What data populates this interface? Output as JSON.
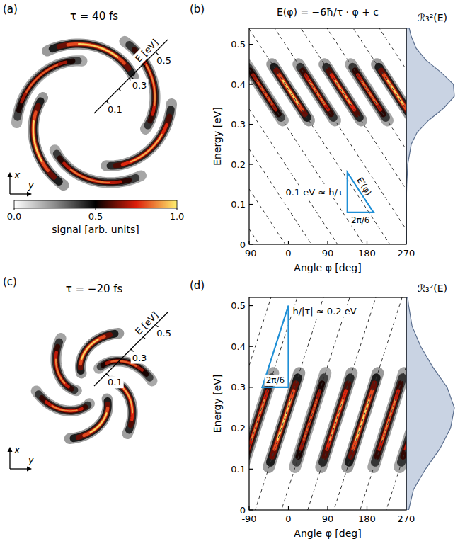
{
  "chart_data": [
    {
      "panel": "(a)",
      "type": "polar_heatmap",
      "title": "τ = 40 fs",
      "r_label": "E [eV]",
      "rlim": [
        0,
        0.6
      ],
      "rticks": [
        0.1,
        0.3,
        0.5
      ],
      "rminor": [
        0.2,
        0.4
      ],
      "direction_labels": [
        "x",
        "y"
      ],
      "streaks": [
        {
          "phi": [
            -97,
            -13
          ],
          "energy": [
            0.45,
            0.31
          ],
          "peak": 0.85
        },
        {
          "phi": [
            -37,
            47
          ],
          "energy": [
            0.45,
            0.31
          ],
          "peak": 1.0
        },
        {
          "phi": [
            23,
            107
          ],
          "energy": [
            0.45,
            0.31
          ],
          "peak": 0.9
        },
        {
          "phi": [
            83,
            167
          ],
          "energy": [
            0.45,
            0.31
          ],
          "peak": 0.95
        },
        {
          "phi": [
            143,
            227
          ],
          "energy": [
            0.45,
            0.31
          ],
          "peak": 0.88
        },
        {
          "phi": [
            203,
            287
          ],
          "energy": [
            0.45,
            0.31
          ],
          "peak": 1.0
        }
      ],
      "colorbar": {
        "label": "signal [arb. units]",
        "range": [
          0,
          1
        ],
        "ticks": [
          {
            "value": 0,
            "label": "0.0"
          },
          {
            "value": 0.5,
            "label": "0.5"
          },
          {
            "value": 1,
            "label": "1.0"
          }
        ],
        "colors": [
          "#ffffff",
          "#8c8c8c",
          "#000000",
          "#dc1e0a",
          "#fff06e"
        ]
      }
    },
    {
      "panel": "(b)",
      "type": "heatmap",
      "xlabel": "Angle φ [deg]",
      "ylabel": "Energy [eV]",
      "xlim": [
        -90,
        270
      ],
      "xticks": [
        -90,
        0,
        90,
        180,
        270
      ],
      "ylim": [
        0,
        0.54
      ],
      "yticks": [
        0,
        0.1,
        0.2,
        0.3,
        0.4,
        0.5
      ],
      "streaks": [
        {
          "phi": [
            -97,
            -13
          ],
          "energy": [
            0.45,
            0.31
          ],
          "peak": 0.85
        },
        {
          "phi": [
            -37,
            47
          ],
          "energy": [
            0.45,
            0.31
          ],
          "peak": 1.0
        },
        {
          "phi": [
            23,
            107
          ],
          "energy": [
            0.45,
            0.31
          ],
          "peak": 0.9
        },
        {
          "phi": [
            83,
            167
          ],
          "energy": [
            0.45,
            0.31
          ],
          "peak": 0.95
        },
        {
          "phi": [
            143,
            227
          ],
          "energy": [
            0.45,
            0.31
          ],
          "peak": 0.88
        },
        {
          "phi": [
            203,
            287
          ],
          "energy": [
            0.45,
            0.31
          ],
          "peak": 1.0
        }
      ],
      "dashed_lines": {
        "label": "E(φ) = −6ħ/τ · φ + c",
        "slope": -0.00167,
        "intercepts": [
          -0.112,
          -0.012,
          0.088,
          0.188,
          0.288,
          0.388,
          0.488,
          0.588,
          0.688,
          0.788,
          0.888,
          0.988
        ]
      },
      "triangle": {
        "phi": [
          135,
          195
        ],
        "energy": [
          0.08,
          0.18
        ],
        "labels": [
          "0.1 eV ≈ h/τ",
          "2π/6",
          "E′(φ)"
        ]
      },
      "profile": {
        "label": "ℛ₃²(E)",
        "energy": [
          0,
          0.05,
          0.1,
          0.15,
          0.2,
          0.25,
          0.28,
          0.31,
          0.34,
          0.37,
          0.4,
          0.43,
          0.46,
          0.49,
          0.52,
          0.54
        ],
        "values": [
          0,
          0,
          0,
          0.01,
          0.03,
          0.1,
          0.22,
          0.45,
          0.75,
          0.97,
          0.95,
          0.7,
          0.4,
          0.2,
          0.1,
          0.06
        ]
      }
    },
    {
      "panel": "(c)",
      "type": "polar_heatmap",
      "title": "τ = −20 fs",
      "r_label": "E [eV]",
      "rlim": [
        0,
        0.6
      ],
      "rticks": [
        0.1,
        0.3,
        0.5
      ],
      "rminor": [
        0.2,
        0.4
      ],
      "direction_labels": [
        "x",
        "y"
      ],
      "streaks": [
        {
          "phi": [
            -105,
            -35
          ],
          "energy": [
            0.105,
            0.335
          ],
          "peak": 0.9
        },
        {
          "phi": [
            -45,
            25
          ],
          "energy": [
            0.105,
            0.335
          ],
          "peak": 1.0
        },
        {
          "phi": [
            15,
            85
          ],
          "energy": [
            0.105,
            0.335
          ],
          "peak": 0.85
        },
        {
          "phi": [
            75,
            145
          ],
          "energy": [
            0.105,
            0.335
          ],
          "peak": 0.95
        },
        {
          "phi": [
            135,
            205
          ],
          "energy": [
            0.105,
            0.335
          ],
          "peak": 1.0
        },
        {
          "phi": [
            195,
            265
          ],
          "energy": [
            0.105,
            0.335
          ],
          "peak": 0.9
        }
      ]
    },
    {
      "panel": "(d)",
      "type": "heatmap",
      "xlabel": "Angle φ [deg]",
      "ylabel": "Energy [eV]",
      "xlim": [
        -90,
        270
      ],
      "xticks": [
        -90,
        0,
        90,
        180,
        270
      ],
      "ylim": [
        0,
        0.52
      ],
      "yticks": [
        0,
        0.1,
        0.2,
        0.3,
        0.4,
        0.5
      ],
      "streaks": [
        {
          "phi": [
            -105,
            -35
          ],
          "energy": [
            0.105,
            0.335
          ],
          "peak": 0.9
        },
        {
          "phi": [
            -45,
            25
          ],
          "energy": [
            0.105,
            0.335
          ],
          "peak": 1.0
        },
        {
          "phi": [
            15,
            85
          ],
          "energy": [
            0.105,
            0.335
          ],
          "peak": 0.85
        },
        {
          "phi": [
            75,
            145
          ],
          "energy": [
            0.105,
            0.335
          ],
          "peak": 0.95
        },
        {
          "phi": [
            135,
            205
          ],
          "energy": [
            0.105,
            0.335
          ],
          "peak": 1.0
        },
        {
          "phi": [
            195,
            265
          ],
          "energy": [
            0.105,
            0.335
          ],
          "peak": 0.9
        },
        {
          "phi": [
            255,
            325
          ],
          "energy": [
            0.105,
            0.335
          ],
          "peak": 0.9
        }
      ],
      "dashed_lines": {
        "slope": 0.00333,
        "intercepts": [
          0.653,
          0.453,
          0.253,
          0.053,
          -0.147,
          -0.347,
          -0.547,
          -0.747
        ]
      },
      "triangle": {
        "phi": [
          -60,
          0
        ],
        "energy": [
          0.3,
          0.5
        ],
        "labels": [
          "h/|τ| ≈ 0.2 eV",
          "2π/6"
        ]
      },
      "profile": {
        "label": "ℛ₃²(E)",
        "energy": [
          0,
          0.05,
          0.1,
          0.15,
          0.2,
          0.25,
          0.3,
          0.35,
          0.4,
          0.45,
          0.5,
          0.52
        ],
        "values": [
          0.05,
          0.15,
          0.4,
          0.7,
          0.92,
          1.0,
          0.85,
          0.55,
          0.3,
          0.12,
          0.05,
          0.03
        ]
      }
    }
  ]
}
